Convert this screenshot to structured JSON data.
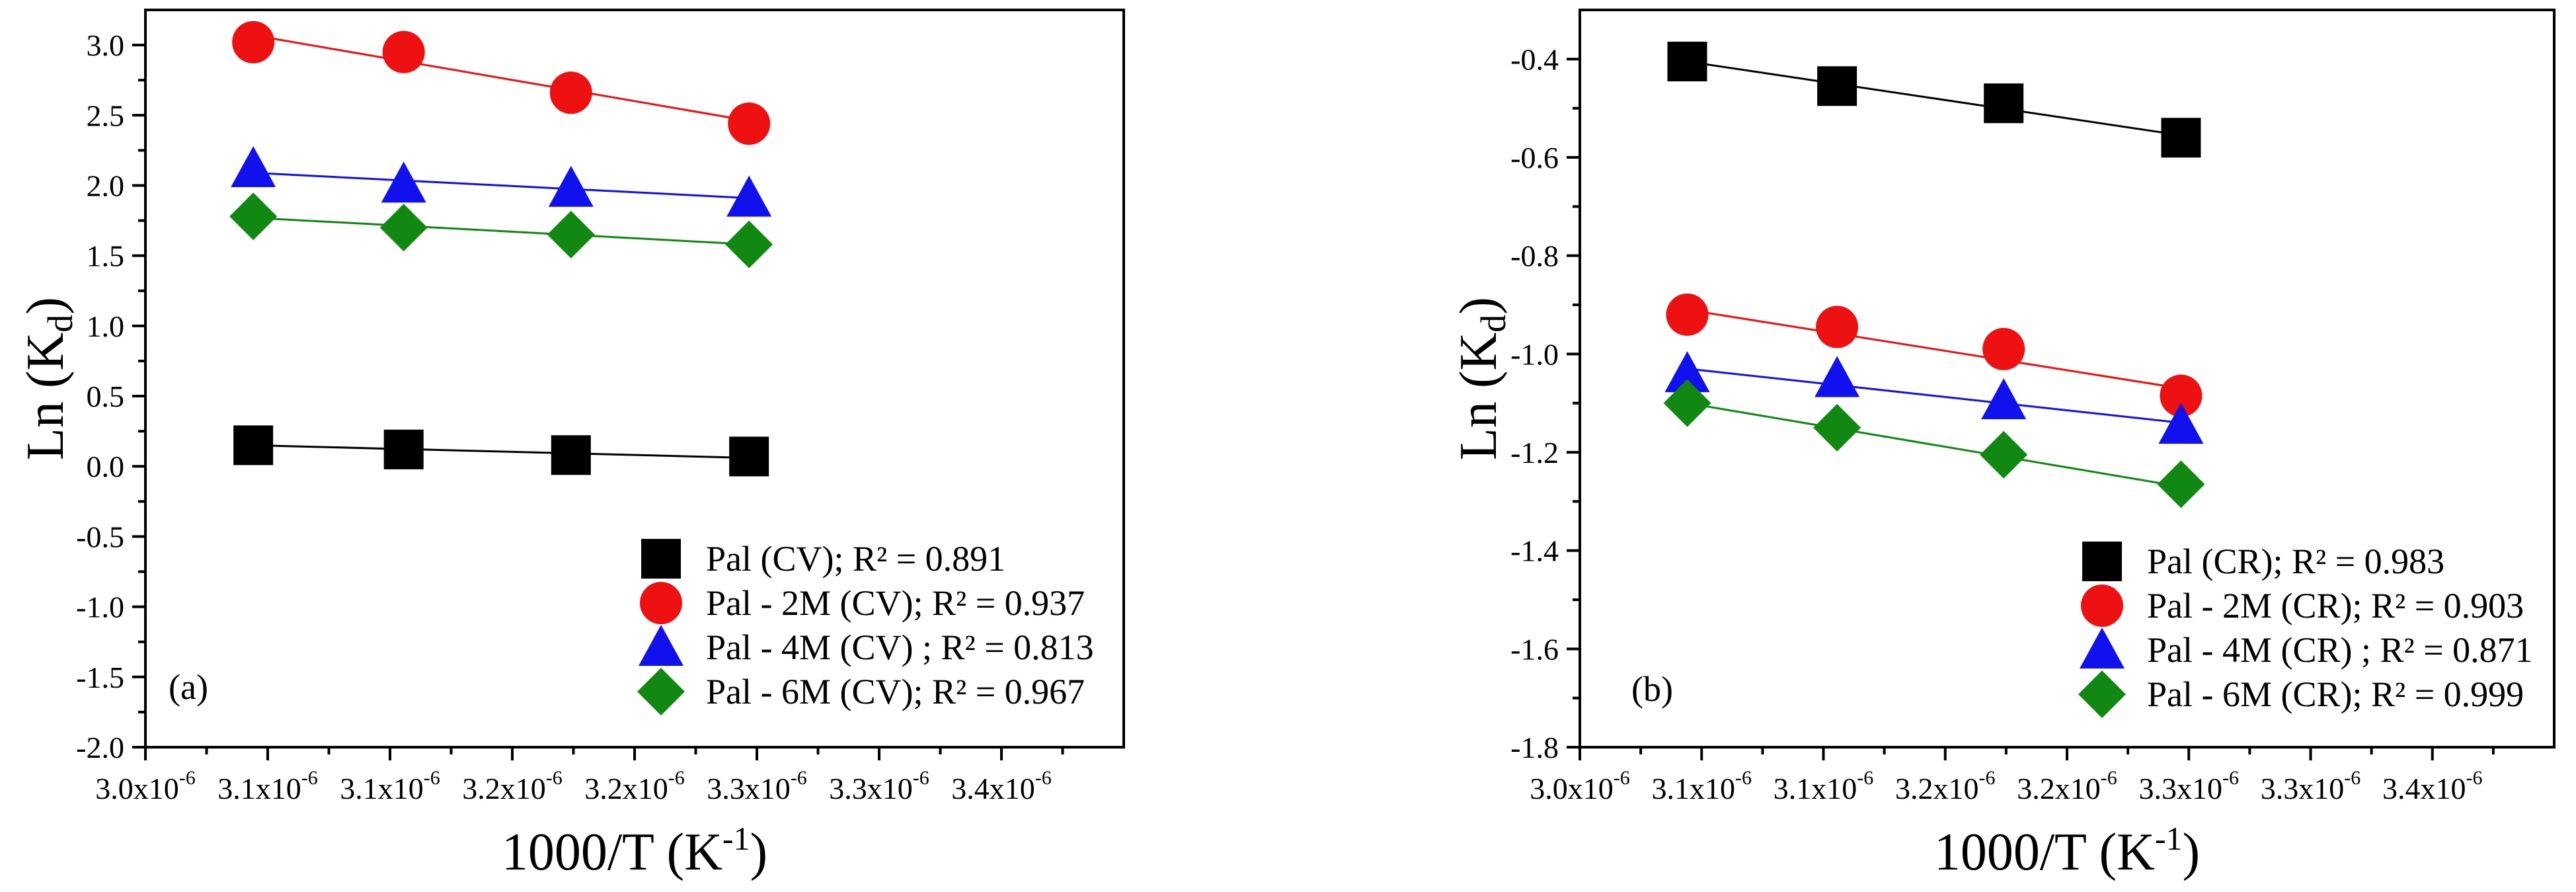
{
  "chart_data": [
    {
      "type": "scatter",
      "panel_label": "(a)",
      "xlabel": "1000/T (K",
      "xlabel_sup": "-1",
      "xlabel_close": ")",
      "ylabel": "Ln (K",
      "ylabel_sub": "d",
      "ylabel_close": ")",
      "xlim": [
        3e-06,
        3.4e-06
      ],
      "ylim": [
        -2.0,
        3.25
      ],
      "x_ticks": [
        {
          "value": 3e-06,
          "mantissa": "3.0x10",
          "exp": "-6"
        },
        {
          "value": 3.05e-06,
          "mantissa": "3.1x10",
          "exp": "-6"
        },
        {
          "value": 3.1e-06,
          "mantissa": "3.1x10",
          "exp": "-6"
        },
        {
          "value": 3.15e-06,
          "mantissa": "3.2x10",
          "exp": "-6"
        },
        {
          "value": 3.2e-06,
          "mantissa": "3.2x10",
          "exp": "-6"
        },
        {
          "value": 3.25e-06,
          "mantissa": "3.3x10",
          "exp": "-6"
        },
        {
          "value": 3.3e-06,
          "mantissa": "3.3x10",
          "exp": "-6"
        },
        {
          "value": 3.35e-06,
          "mantissa": "3.4x10",
          "exp": "-6"
        }
      ],
      "y_ticks": [
        "3.0",
        "2.5",
        "2.0",
        "1.5",
        "1.0",
        "0.5",
        "0.0",
        "-0.5",
        "-1.0",
        "-1.5",
        "-2.0"
      ],
      "x": [
        3.0441e-06,
        3.1056e-06,
        3.174e-06,
        3.2468e-06
      ],
      "series": [
        {
          "name": "Pal (CV); R² = 0.891",
          "color": "#000000",
          "marker": "square",
          "values": [
            0.15,
            0.12,
            0.08,
            0.07
          ],
          "fit": [
            0.15,
            0.06
          ]
        },
        {
          "name": "Pal - 2M (CV); R² = 0.937",
          "color": "#ee1111",
          "marker": "circle",
          "values": [
            3.02,
            2.95,
            2.66,
            2.44
          ],
          "fit": [
            3.07,
            2.46
          ]
        },
        {
          "name": "Pal - 4M (CV) ; R² = 0.813",
          "color": "#1111ee",
          "marker": "triangle",
          "values": [
            2.12,
            2.01,
            1.98,
            1.91
          ],
          "fit": [
            2.09,
            1.91
          ]
        },
        {
          "name": "Pal - 6M (CV); R² = 0.967",
          "color": "#118811",
          "marker": "diamond",
          "values": [
            1.78,
            1.7,
            1.65,
            1.58
          ],
          "fit": [
            1.77,
            1.58
          ]
        }
      ]
    },
    {
      "type": "scatter",
      "panel_label": "(b)",
      "xlabel": "1000/T (K",
      "xlabel_sup": "-1",
      "xlabel_close": ")",
      "ylabel": "Ln (K",
      "ylabel_sub": "d",
      "ylabel_close": ")",
      "xlim": [
        3e-06,
        3.4e-06
      ],
      "ylim": [
        -1.8,
        -0.3
      ],
      "x_ticks": [
        {
          "value": 3e-06,
          "mantissa": "3.0x10",
          "exp": "-6"
        },
        {
          "value": 3.05e-06,
          "mantissa": "3.1x10",
          "exp": "-6"
        },
        {
          "value": 3.1e-06,
          "mantissa": "3.1x10",
          "exp": "-6"
        },
        {
          "value": 3.15e-06,
          "mantissa": "3.2x10",
          "exp": "-6"
        },
        {
          "value": 3.2e-06,
          "mantissa": "3.2x10",
          "exp": "-6"
        },
        {
          "value": 3.25e-06,
          "mantissa": "3.3x10",
          "exp": "-6"
        },
        {
          "value": 3.3e-06,
          "mantissa": "3.3x10",
          "exp": "-6"
        },
        {
          "value": 3.35e-06,
          "mantissa": "3.4x10",
          "exp": "-6"
        }
      ],
      "y_ticks": [
        "-0.4",
        "-0.6",
        "-0.8",
        "-1.0",
        "-1.2",
        "-1.4",
        "-1.6",
        "-1.8"
      ],
      "x": [
        3.0441e-06,
        3.1056e-06,
        3.174e-06,
        3.2468e-06
      ],
      "series": [
        {
          "name": "Pal (CR); R² = 0.983",
          "color": "#000000",
          "marker": "square",
          "values": [
            -0.405,
            -0.455,
            -0.49,
            -0.56
          ],
          "fit": [
            -0.405,
            -0.555
          ]
        },
        {
          "name": "Pal - 2M (CR); R² = 0.903",
          "color": "#ee1111",
          "marker": "circle",
          "values": [
            -0.92,
            -0.945,
            -0.99,
            -1.085
          ],
          "fit": [
            -0.91,
            -1.07
          ]
        },
        {
          "name": "Pal - 4M (CR) ; R² = 0.871",
          "color": "#1111ee",
          "marker": "triangle",
          "values": [
            -1.04,
            -1.05,
            -1.095,
            -1.145
          ],
          "fit": [
            -1.03,
            -1.14
          ]
        },
        {
          "name": "Pal - 6M (CR); R² = 0.999",
          "color": "#118811",
          "marker": "diamond",
          "values": [
            -1.1,
            -1.15,
            -1.205,
            -1.265
          ],
          "fit": [
            -1.1,
            -1.27
          ]
        }
      ]
    }
  ]
}
